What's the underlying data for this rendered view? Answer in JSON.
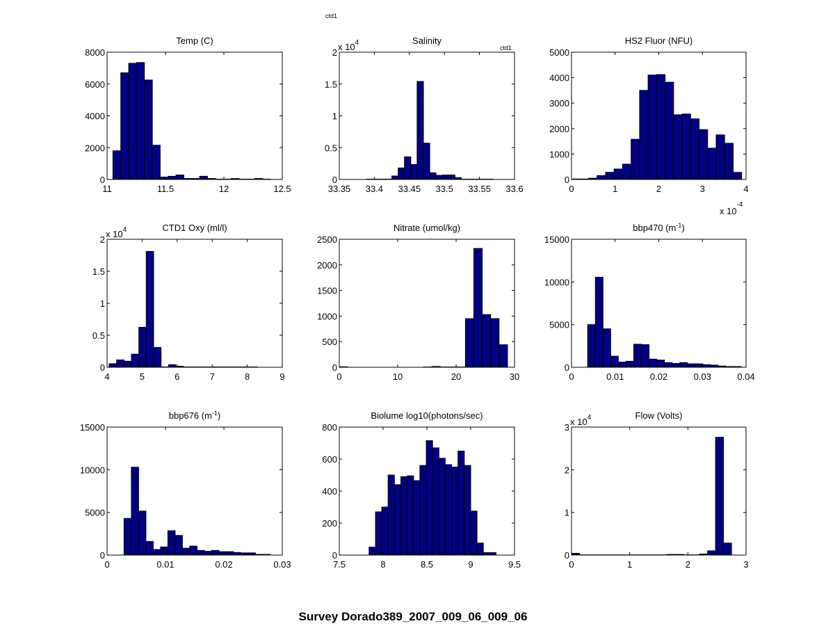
{
  "figure": {
    "suptitle": "Survey Dorado389_2007_009_06_009_06",
    "annotations": [
      "ctd1",
      "ctd1"
    ],
    "bar_color": "#000080",
    "edge_color": "#000000"
  },
  "chart_data": [
    {
      "type": "bar",
      "title": "Temp (C)",
      "title_sup": "",
      "title_after": "",
      "xlim": [
        11,
        12.5
      ],
      "ylim": [
        0,
        8000
      ],
      "xticks": [
        11,
        11.5,
        12,
        12.5
      ],
      "xtick_labels": [
        "11",
        "11.5",
        "12",
        "12.5"
      ],
      "yticks": [
        0,
        2000,
        4000,
        6000,
        8000
      ],
      "ytick_labels": [
        "0",
        "2000",
        "4000",
        "6000",
        "8000"
      ],
      "y_exponent": "",
      "x_exponent": "",
      "bin_start": 11.05,
      "bin_width": 0.0675,
      "values": [
        1800,
        6700,
        7300,
        7350,
        6250,
        2150,
        150,
        200,
        280,
        60,
        60,
        200,
        60,
        20,
        20,
        60,
        20,
        20,
        60,
        20
      ]
    },
    {
      "type": "bar",
      "title": "Salinity",
      "title_sup": "",
      "title_after": "",
      "xlim": [
        33.35,
        33.6
      ],
      "ylim": [
        0,
        20000
      ],
      "xticks": [
        33.35,
        33.4,
        33.45,
        33.5,
        33.55,
        33.6
      ],
      "xtick_labels": [
        "33.35",
        "33.4",
        "33.45",
        "33.5",
        "33.55",
        "33.6"
      ],
      "yticks": [
        0,
        5000,
        10000,
        15000,
        20000
      ],
      "ytick_labels": [
        "0",
        "0.5",
        "1",
        "1.5",
        "2"
      ],
      "y_exponent": "4",
      "x_exponent": "",
      "bin_start": 33.389,
      "bin_width": 0.009,
      "values": [
        50,
        50,
        50,
        50,
        550,
        1800,
        3550,
        2350,
        15400,
        5700,
        1050,
        650,
        700,
        700,
        300,
        50,
        50,
        50,
        50,
        50
      ]
    },
    {
      "type": "bar",
      "title": "HS2 Fluor (NFU)",
      "title_sup": "",
      "title_after": "",
      "xlim": [
        0,
        0.0004
      ],
      "ylim": [
        0,
        5000
      ],
      "xticks": [
        0,
        0.0001,
        0.0002,
        0.0003,
        0.0004
      ],
      "xtick_labels": [
        "0",
        "1",
        "2",
        "3",
        "4"
      ],
      "yticks": [
        0,
        1000,
        2000,
        3000,
        4000,
        5000
      ],
      "ytick_labels": [
        "0",
        "1000",
        "2000",
        "3000",
        "4000",
        "5000"
      ],
      "y_exponent": "",
      "x_exponent": "-4",
      "bin_start": 0.0,
      "bin_width": 1.95e-05,
      "values": [
        20,
        20,
        50,
        150,
        280,
        410,
        600,
        1580,
        3500,
        4100,
        4120,
        3820,
        2540,
        2570,
        2380,
        1960,
        1230,
        1750,
        1420,
        280
      ]
    },
    {
      "type": "bar",
      "title": "CTD1 Oxy (ml/l)",
      "title_sup": "",
      "title_after": "",
      "xlim": [
        4,
        9
      ],
      "ylim": [
        0,
        20000
      ],
      "xticks": [
        4,
        5,
        6,
        7,
        8,
        9
      ],
      "xtick_labels": [
        "4",
        "5",
        "6",
        "7",
        "8",
        "9"
      ],
      "yticks": [
        0,
        5000,
        10000,
        15000,
        20000
      ],
      "ytick_labels": [
        "0",
        "0.5",
        "1",
        "1.5",
        "2"
      ],
      "y_exponent": "4",
      "x_exponent": "",
      "bin_start": 4.06,
      "bin_width": 0.2115,
      "values": [
        550,
        1150,
        950,
        2050,
        6250,
        18100,
        3100,
        50,
        400,
        150,
        50,
        50,
        50,
        50,
        50,
        50,
        50,
        50,
        50,
        50
      ]
    },
    {
      "type": "bar",
      "title": "Nitrate (umol/kg)",
      "title_sup": "",
      "title_after": "",
      "xlim": [
        0,
        30
      ],
      "ylim": [
        0,
        2500
      ],
      "xticks": [
        0,
        10,
        20,
        30
      ],
      "xtick_labels": [
        "0",
        "10",
        "20",
        "30"
      ],
      "yticks": [
        0,
        500,
        1000,
        1500,
        2000,
        2500
      ],
      "ytick_labels": [
        "0",
        "500",
        "1000",
        "1500",
        "2000",
        "2500"
      ],
      "y_exponent": "",
      "x_exponent": "",
      "bin_start": 0.0,
      "bin_width": 1.44,
      "values": [
        10,
        0,
        0,
        0,
        0,
        0,
        0,
        0,
        0,
        0,
        5,
        15,
        5,
        5,
        5,
        950,
        2320,
        1030,
        950,
        440
      ]
    },
    {
      "type": "bar",
      "title": "bbp470 (m",
      "title_sup": "-1",
      "title_after": ")",
      "xlim": [
        0,
        0.04
      ],
      "ylim": [
        0,
        15000
      ],
      "xticks": [
        0,
        0.01,
        0.02,
        0.03,
        0.04
      ],
      "xtick_labels": [
        "0",
        "0.01",
        "0.02",
        "0.03",
        "0.04"
      ],
      "yticks": [
        0,
        5000,
        10000,
        15000
      ],
      "ytick_labels": [
        "0",
        "5000",
        "10000",
        "15000"
      ],
      "y_exponent": "",
      "x_exponent": "",
      "bin_start": 0.0037,
      "bin_width": 0.00176,
      "values": [
        5000,
        10550,
        4500,
        1300,
        600,
        700,
        2700,
        2650,
        950,
        850,
        550,
        450,
        550,
        400,
        400,
        300,
        250,
        150,
        80,
        80
      ]
    },
    {
      "type": "bar",
      "title": "bbp676 (m",
      "title_sup": "-1",
      "title_after": ")",
      "xlim": [
        0,
        0.03
      ],
      "ylim": [
        0,
        15000
      ],
      "xticks": [
        0,
        0.01,
        0.02,
        0.03
      ],
      "xtick_labels": [
        "0",
        "0.01",
        "0.02",
        "0.03"
      ],
      "yticks": [
        0,
        5000,
        10000,
        15000
      ],
      "ytick_labels": [
        "0",
        "5000",
        "10000",
        "15000"
      ],
      "y_exponent": "",
      "x_exponent": "",
      "bin_start": 0.0029,
      "bin_width": 0.00125,
      "values": [
        4300,
        10300,
        5150,
        1600,
        650,
        950,
        2850,
        2300,
        800,
        1050,
        550,
        450,
        550,
        400,
        400,
        300,
        250,
        250,
        80,
        80
      ]
    },
    {
      "type": "bar",
      "title": "Biolume log10(photons/sec)",
      "title_sup": "",
      "title_after": "",
      "xlim": [
        7.5,
        9.5
      ],
      "ylim": [
        0,
        800
      ],
      "xticks": [
        7.5,
        8,
        8.5,
        9,
        9.5
      ],
      "xtick_labels": [
        "7.5",
        "8",
        "8.5",
        "9",
        "9.5"
      ],
      "yticks": [
        0,
        200,
        400,
        600,
        800
      ],
      "ytick_labels": [
        "0",
        "200",
        "400",
        "600",
        "800"
      ],
      "y_exponent": "",
      "x_exponent": "",
      "bin_start": 7.84,
      "bin_width": 0.0725,
      "values": [
        50,
        270,
        300,
        500,
        440,
        490,
        495,
        465,
        560,
        715,
        670,
        605,
        565,
        550,
        650,
        560,
        275,
        75,
        15,
        15
      ]
    },
    {
      "type": "bar",
      "title": "Flow (Volts)",
      "title_sup": "",
      "title_after": "",
      "xlim": [
        0,
        3
      ],
      "ylim": [
        0,
        30000
      ],
      "xticks": [
        0,
        1,
        2,
        3
      ],
      "xtick_labels": [
        "0",
        "1",
        "2",
        "3"
      ],
      "yticks": [
        0,
        10000,
        20000,
        30000
      ],
      "ytick_labels": [
        "0",
        "1",
        "2",
        "3"
      ],
      "y_exponent": "4",
      "x_exponent": "",
      "bin_start": 0.0,
      "bin_width": 0.1375,
      "values": [
        400,
        50,
        50,
        50,
        50,
        50,
        50,
        50,
        50,
        50,
        50,
        50,
        150,
        150,
        50,
        50,
        250,
        1000,
        27600,
        2800
      ]
    }
  ]
}
